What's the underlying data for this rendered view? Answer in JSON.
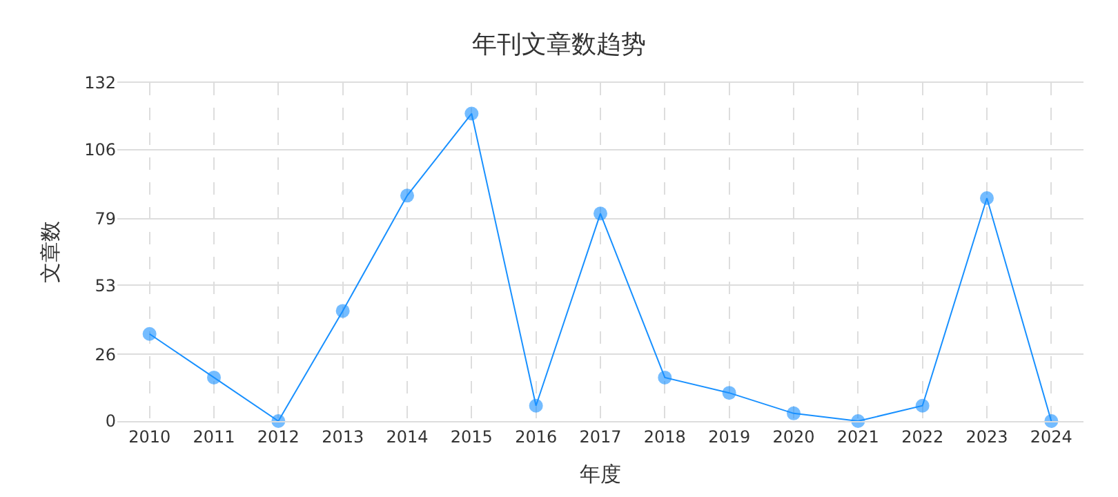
{
  "chart_data": {
    "type": "line",
    "title": "年刊文章数趋势",
    "xlabel": "年度",
    "ylabel": "文章数",
    "categories": [
      "2010",
      "2011",
      "2012",
      "2013",
      "2014",
      "2015",
      "2016",
      "2017",
      "2018",
      "2019",
      "2020",
      "2021",
      "2022",
      "2023",
      "2024"
    ],
    "series": [
      {
        "color": "#1890ff",
        "values": [
          34,
          17,
          0,
          43,
          88,
          120,
          6,
          81,
          17,
          11,
          3,
          0,
          6,
          87,
          0
        ]
      }
    ],
    "ylim": [
      0,
      132
    ],
    "yticks": [
      0,
      26,
      53,
      79,
      106,
      132
    ],
    "grid": true,
    "marker": "circle",
    "line_style": "solid"
  }
}
